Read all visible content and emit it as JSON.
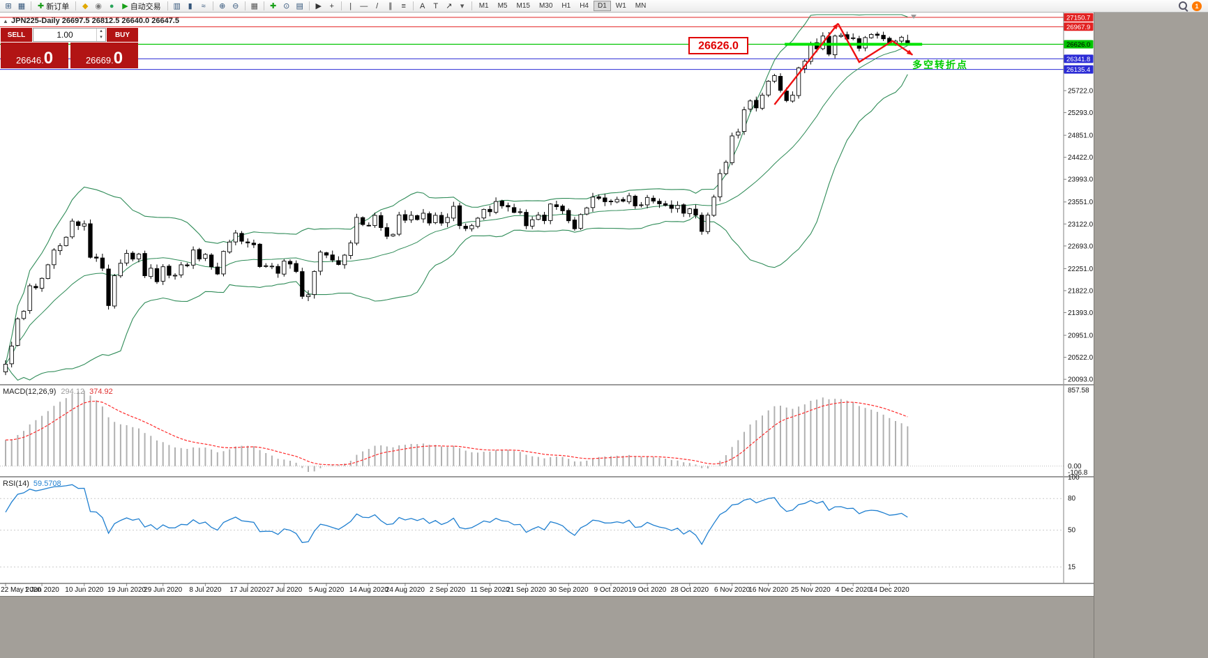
{
  "toolbar": {
    "items": [
      {
        "type": "icon",
        "name": "new-chart-icon",
        "glyph": "⊞",
        "color": "#33557a"
      },
      {
        "type": "icon",
        "name": "chart-profiles-icon",
        "glyph": "▦",
        "color": "#33557a"
      },
      {
        "type": "sep"
      },
      {
        "type": "button",
        "name": "new-order-button",
        "glyph": "✚",
        "glyph_color": "#1a9c1a",
        "label": "新订单"
      },
      {
        "type": "sep"
      },
      {
        "type": "icon",
        "name": "indicator-diamond-icon",
        "glyph": "◆",
        "color": "#e0a800"
      },
      {
        "type": "icon",
        "name": "history-center-icon",
        "glyph": "◉",
        "color": "#7a7a7a"
      },
      {
        "type": "icon",
        "name": "scripts-icon",
        "glyph": "●",
        "color": "#2aa45a"
      },
      {
        "type": "button",
        "name": "auto-trading-button",
        "glyph": "▶",
        "glyph_color": "#18a018",
        "label": "自动交易"
      },
      {
        "type": "sep"
      },
      {
        "type": "icon",
        "name": "bar-chart-icon",
        "glyph": "▥",
        "color": "#33557a"
      },
      {
        "type": "icon",
        "name": "candlestick-chart-icon",
        "glyph": "▮",
        "color": "#33557a"
      },
      {
        "type": "icon",
        "name": "line-chart-icon",
        "glyph": "≈",
        "color": "#33557a"
      },
      {
        "type": "sep"
      },
      {
        "type": "icon",
        "name": "zoom-in-icon",
        "glyph": "⊕",
        "color": "#33557a"
      },
      {
        "type": "icon",
        "name": "zoom-out-icon",
        "glyph": "⊖",
        "color": "#33557a"
      },
      {
        "type": "sep"
      },
      {
        "type": "icon",
        "name": "tile-windows-icon",
        "glyph": "▦",
        "color": "#555"
      },
      {
        "type": "sep"
      },
      {
        "type": "icon",
        "name": "indicators-add-icon",
        "glyph": "✚",
        "color": "#18a018"
      },
      {
        "type": "icon",
        "name": "periods-icon",
        "glyph": "⊙",
        "color": "#33557a"
      },
      {
        "type": "icon",
        "name": "templates-icon",
        "glyph": "▤",
        "color": "#33557a"
      },
      {
        "type": "sep"
      },
      {
        "type": "icon",
        "name": "cursor-icon",
        "glyph": "▶",
        "color": "#333"
      },
      {
        "type": "icon",
        "name": "crosshair-icon",
        "glyph": "+",
        "color": "#333"
      },
      {
        "type": "sep"
      },
      {
        "type": "icon",
        "name": "vertical-line-icon",
        "glyph": "|",
        "color": "#333"
      },
      {
        "type": "icon",
        "name": "horizontal-line-icon",
        "glyph": "—",
        "color": "#333"
      },
      {
        "type": "icon",
        "name": "trendline-icon",
        "glyph": "/",
        "color": "#333"
      },
      {
        "type": "icon",
        "name": "channel-icon",
        "glyph": "∥",
        "color": "#333"
      },
      {
        "type": "icon",
        "name": "fibonacci-icon",
        "glyph": "≡",
        "color": "#333"
      },
      {
        "type": "sep"
      },
      {
        "type": "icon",
        "name": "text-icon",
        "glyph": "A",
        "color": "#333"
      },
      {
        "type": "icon",
        "name": "text-label-icon",
        "glyph": "T",
        "color": "#333"
      },
      {
        "type": "icon",
        "name": "arrow-tools-icon",
        "glyph": "↗",
        "color": "#333"
      },
      {
        "type": "icon",
        "name": "tools-dropdown-icon",
        "glyph": "▾",
        "color": "#555"
      },
      {
        "type": "sep"
      }
    ],
    "timeframes": [
      "M1",
      "M5",
      "M15",
      "M30",
      "H1",
      "H4",
      "D1",
      "W1",
      "MN"
    ],
    "active_timeframe": "D1",
    "notification_count": "1"
  },
  "chart_header": {
    "collapse_glyph": "▲",
    "title_line": "JPN225-Daily  26697.5 26812.5 26640.0 26647.5"
  },
  "trade_panel": {
    "sell_label": "SELL",
    "buy_label": "BUY",
    "volume": "1.00",
    "volume_up_glyph": "▴",
    "volume_down_glyph": "▾",
    "sell_price_small": "26646.",
    "sell_price_big": "0",
    "buy_price_small": "26669.",
    "buy_price_big": "0"
  },
  "annotations": {
    "price_label_box": "26626.0",
    "turning_point_text": "多空转折点",
    "turning_point_color": "#00cc00",
    "hlines": [
      {
        "label": "27150.7",
        "price": 27150.7,
        "color": "#e22222",
        "text_color": "#ffffff"
      },
      {
        "label": "26967.9",
        "price": 26967.9,
        "color": "#e22222",
        "text_color": "#ffffff"
      },
      {
        "label": "26626.0",
        "price": 26626.0,
        "color": "#00c400",
        "text_color": "#000000"
      },
      {
        "label": "26341.8",
        "price": 26341.8,
        "color": "#2b2bd5",
        "text_color": "#ffffff"
      },
      {
        "label": "26135.4",
        "price": 26135.4,
        "color": "#2b2bd5",
        "text_color": "#ffffff"
      }
    ],
    "highlight_segment": {
      "price": 26626.0,
      "x_bars": [
        128.7,
        151.4
      ],
      "color": "#00e400"
    },
    "zigzag": {
      "color": "#ee1111",
      "segments": [
        [
          [
            127,
            25450
          ],
          [
            137.5,
            27030
          ]
        ],
        [
          [
            137.5,
            27030
          ],
          [
            141,
            26280
          ],
          [
            146.5,
            26690
          ],
          [
            149.8,
            26420
          ]
        ]
      ]
    }
  },
  "price_axis": {
    "ticks": [
      "25722.0",
      "25293.0",
      "24851.0",
      "24422.0",
      "23993.0",
      "23551.0",
      "23122.0",
      "22693.0",
      "22251.0",
      "21822.0",
      "21393.0",
      "20951.0",
      "20522.0",
      "20093.0"
    ]
  },
  "date_axis": {
    "labels": [
      "22 May 2020",
      "1 Jun 2020",
      "10 Jun 2020",
      "19 Jun 2020",
      "29 Jun 2020",
      "8 Jul 2020",
      "17 Jul 2020",
      "27 Jul 2020",
      "5 Aug 2020",
      "14 Aug 2020",
      "24 Aug 2020",
      "2 Sep 2020",
      "11 Sep 2020",
      "21 Sep 2020",
      "30 Sep 2020",
      "9 Oct 2020",
      "19 Oct 2020",
      "28 Oct 2020",
      "6 Nov 2020",
      "16 Nov 2020",
      "25 Nov 2020",
      "4 Dec 2020",
      "14 Dec 2020"
    ]
  },
  "macd_panel": {
    "label": "MACD(12,26,9)",
    "value_main": "294.12",
    "value_signal": "374.92",
    "scale_max": "857.58",
    "scale_zero": "0.00",
    "scale_min": "-106.8"
  },
  "rsi_panel": {
    "label": "RSI(14)",
    "value": "59.5708",
    "scale_labels": [
      "100",
      "80",
      "50",
      "15"
    ]
  },
  "chart_data": {
    "type": "candlestick",
    "symbol": "JPN225",
    "timeframe": "Daily",
    "start_date": "2020-05-22",
    "price_range": [
      20000,
      27190
    ],
    "macd_range": [
      -106.8,
      857.58
    ],
    "rsi_range": [
      0,
      100
    ],
    "current_bar_ohlc": {
      "open": 26697.5,
      "high": 26812.5,
      "low": 26640.0,
      "close": 26647.5
    },
    "indicators": [
      {
        "name": "Bollinger Bands",
        "period": 20,
        "deviation": 2
      },
      {
        "name": "MACD",
        "params": "12,26,9",
        "main": 294.12,
        "signal": 374.92
      },
      {
        "name": "RSI",
        "period": 14,
        "value": 59.5708
      }
    ],
    "closes": [
      20388,
      20741,
      21271,
      21419,
      21916,
      21878,
      22062,
      22326,
      22614,
      22696,
      22864,
      23178,
      23091,
      23125,
      22472,
      22456,
      22259,
      21531,
      22112,
      22355,
      22549,
      22437,
      22535,
      22112,
      22259,
      21995,
      22288,
      22121,
      22122,
      22325,
      22307,
      22614,
      22439,
      22530,
      22288,
      22146,
      22588,
      22770,
      22946,
      22785,
      22752,
      22717,
      22290,
      22306,
      22300,
      22159,
      22397,
      22340,
      22195,
      21710,
      21740,
      22196,
      22573,
      22515,
      22418,
      22330,
      22514,
      22751,
      23250,
      23110,
      23096,
      23289,
      23051,
      22880,
      22920,
      23297,
      23194,
      23290,
      23208,
      23331,
      23140,
      23290,
      23139,
      23248,
      23466,
      23090,
      23033,
      23089,
      23235,
      23406,
      23360,
      23560,
      23475,
      23454,
      23346,
      23360,
      23087,
      23204,
      23296,
      23185,
      23511,
      23459,
      23380,
      23185,
      23029,
      23306,
      23434,
      23647,
      23620,
      23556,
      23558,
      23601,
      23567,
      23671,
      23474,
      23494,
      23639,
      23567,
      23516,
      23486,
      23426,
      23485,
      23332,
      23418,
      23295,
      22977,
      23295,
      23647,
      24105,
      24325,
      24839,
      24916,
      25349,
      25521,
      25385,
      25634,
      25906,
      26014,
      25728,
      25527,
      25634,
      26165,
      26296,
      26644,
      26537,
      26787,
      26433,
      26787,
      26800,
      26728,
      26751,
      26547,
      26756,
      26817,
      26800,
      26732,
      26652,
      26687,
      26763,
      26647.5
    ]
  }
}
